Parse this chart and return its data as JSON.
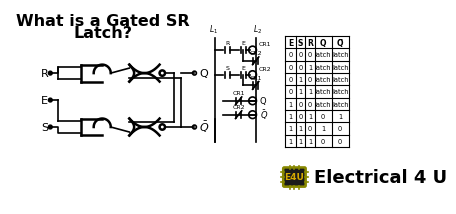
{
  "title_line1": "What is a Gated SR",
  "title_line2": "Latch?",
  "bg_color": "#ffffff",
  "text_color": "#000000",
  "table_headers": [
    "E",
    "S",
    "R",
    "Q",
    "Q̅"
  ],
  "table_rows": [
    [
      "0",
      "0",
      "0",
      "latch",
      "latch"
    ],
    [
      "0",
      "0",
      "1",
      "latch",
      "latch"
    ],
    [
      "0",
      "1",
      "0",
      "latch",
      "latch"
    ],
    [
      "0",
      "1",
      "1",
      "latch",
      "latch"
    ],
    [
      "1",
      "0",
      "0",
      "latch",
      "latch"
    ],
    [
      "1",
      "0",
      "1",
      "0",
      "1"
    ],
    [
      "1",
      "1",
      "0",
      "1",
      "0"
    ],
    [
      "1",
      "1",
      "1",
      "0",
      "0"
    ]
  ],
  "brand_text": "Electrical 4 U",
  "lw": 1.2,
  "gate_lw": 1.8
}
